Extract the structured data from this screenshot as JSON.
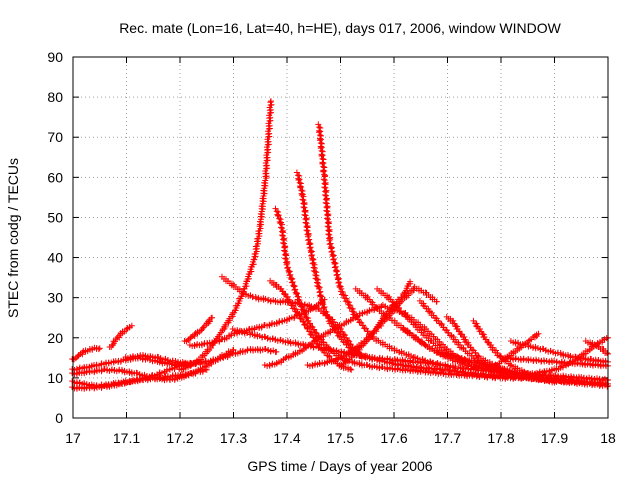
{
  "chart_data": {
    "type": "scatter",
    "title": "Rec. mate (Lon=16, Lat=40, h=HE), days 017, 2006, window WINDOW",
    "xlabel": "GPS time / Days of year 2006",
    "ylabel": "STEC from codg / TECUs",
    "xlim": [
      17,
      18
    ],
    "ylim": [
      0,
      90
    ],
    "xticks": [
      17,
      17.1,
      17.2,
      17.3,
      17.4,
      17.5,
      17.6,
      17.7,
      17.8,
      17.9,
      18
    ],
    "xtick_labels": [
      "17",
      "17.1",
      "17.2",
      "17.3",
      "17.4",
      "17.5",
      "17.6",
      "17.7",
      "17.8",
      "17.9",
      "18"
    ],
    "yticks": [
      0,
      10,
      20,
      30,
      40,
      50,
      60,
      70,
      80,
      90
    ],
    "ytick_labels": [
      "0",
      "10",
      "20",
      "30",
      "40",
      "50",
      "60",
      "70",
      "80",
      "90"
    ],
    "grid": "dotted",
    "marker": "plus",
    "color": "#ff0000",
    "series": [
      {
        "x": [
          17.0,
          17.02,
          17.04,
          17.06,
          17.08,
          17.1,
          17.12,
          17.14,
          17.16,
          17.18,
          17.2,
          17.22,
          17.24
        ],
        "y": [
          12,
          12.5,
          13,
          13.6,
          14,
          14.5,
          15,
          14.6,
          14,
          13.5,
          13,
          13.5,
          14
        ]
      },
      {
        "x": [
          17.0,
          17.03,
          17.06,
          17.09,
          17.12,
          17.15,
          17.18,
          17.2,
          17.22,
          17.25,
          17.28,
          17.3
        ],
        "y": [
          11,
          11.5,
          12,
          11.8,
          11,
          10,
          9.5,
          10,
          11,
          13,
          15.5,
          17
        ]
      },
      {
        "x": [
          17.0,
          17.02,
          17.04,
          17.06,
          17.08,
          17.1,
          17.13,
          17.16,
          17.19,
          17.22,
          17.25
        ],
        "y": [
          9,
          8.5,
          8,
          8.2,
          8.6,
          9,
          9.5,
          10,
          10.5,
          11,
          12
        ]
      },
      {
        "x": [
          17.0,
          17.01,
          17.02,
          17.03,
          17.04,
          17.05
        ],
        "y": [
          14.5,
          15.5,
          16.5,
          17,
          17.3,
          17.4
        ]
      },
      {
        "x": [
          17.0,
          17.03,
          17.06,
          17.09,
          17.12,
          17.15,
          17.18,
          17.21
        ],
        "y": [
          7.5,
          7.5,
          7.8,
          8.5,
          9.5,
          10.5,
          12,
          13.5
        ]
      },
      {
        "x": [
          17.07,
          17.08,
          17.09,
          17.1,
          17.11
        ],
        "y": [
          17.5,
          19.5,
          21,
          22.2,
          23
        ]
      },
      {
        "x": [
          17.1,
          17.13,
          17.16,
          17.19,
          17.22,
          17.25,
          17.28,
          17.3,
          17.33,
          17.36,
          17.38
        ],
        "y": [
          15,
          15.5,
          15,
          14,
          13.5,
          14,
          15,
          16,
          17,
          17,
          16.5
        ]
      },
      {
        "x": [
          17.2,
          17.22,
          17.24,
          17.26,
          17.28,
          17.3,
          17.32,
          17.34,
          17.35,
          17.36,
          17.37
        ],
        "y": [
          12,
          13,
          15,
          18,
          22,
          26,
          32,
          40,
          48,
          60,
          79
        ]
      },
      {
        "x": [
          17.22,
          17.25,
          17.28,
          17.3,
          17.33,
          17.36,
          17.39,
          17.42,
          17.45,
          17.47
        ],
        "y": [
          18,
          18.5,
          19.5,
          21,
          22,
          23,
          24,
          25.5,
          27.5,
          29.5
        ]
      },
      {
        "x": [
          17.21,
          17.22,
          17.23,
          17.24,
          17.25,
          17.26
        ],
        "y": [
          19,
          20,
          21,
          22,
          23.5,
          25
        ]
      },
      {
        "x": [
          17.38,
          17.39,
          17.4,
          17.42,
          17.44,
          17.46,
          17.48,
          17.5,
          17.52,
          17.55,
          17.58,
          17.62,
          17.66,
          17.7,
          17.75,
          17.8,
          17.85,
          17.9,
          17.95,
          18.0
        ],
        "y": [
          52,
          48,
          38,
          30,
          24,
          20,
          17,
          15,
          14,
          13,
          12.5,
          12,
          11.5,
          11,
          10.5,
          10,
          10,
          9.5,
          9,
          8.5
        ]
      },
      {
        "x": [
          17.42,
          17.43,
          17.44,
          17.45,
          17.46,
          17.47,
          17.48,
          17.5,
          17.52,
          17.55,
          17.6,
          17.65,
          17.7,
          17.75,
          17.8,
          17.85,
          17.9,
          17.95
        ],
        "y": [
          61,
          55,
          45,
          38,
          32,
          27,
          24,
          20,
          17,
          15,
          13.5,
          12.5,
          12,
          11,
          10.5,
          10,
          9.5,
          9
        ]
      },
      {
        "x": [
          17.46,
          17.47,
          17.48,
          17.5,
          17.53,
          17.56,
          17.6,
          17.64,
          17.68,
          17.72,
          17.76,
          17.8,
          17.85,
          17.9,
          17.95,
          18.0
        ],
        "y": [
          73,
          60,
          44,
          32,
          25,
          20,
          17,
          15,
          13.5,
          12.5,
          12,
          11.5,
          11,
          10.5,
          10,
          9.5
        ]
      },
      {
        "x": [
          17.28,
          17.3,
          17.32,
          17.34,
          17.36,
          17.38,
          17.4,
          17.42,
          17.44,
          17.46,
          17.48,
          17.5,
          17.52,
          17.54
        ],
        "y": [
          35,
          33,
          31,
          30,
          29.5,
          29,
          29,
          28.5,
          28,
          27,
          25,
          22,
          18,
          15
        ]
      },
      {
        "x": [
          17.37,
          17.38,
          17.39,
          17.4,
          17.42,
          17.44,
          17.46,
          17.48,
          17.5,
          17.52
        ],
        "y": [
          34,
          33,
          32,
          30,
          26,
          22,
          18,
          15,
          13,
          12
        ]
      },
      {
        "x": [
          17.3,
          17.33,
          17.36,
          17.4,
          17.44,
          17.48,
          17.52,
          17.56,
          17.6,
          17.64,
          17.68
        ],
        "y": [
          22,
          21,
          20,
          19,
          18,
          17,
          16,
          15,
          14.5,
          14,
          13.5
        ]
      },
      {
        "x": [
          17.44,
          17.46,
          17.48,
          17.5,
          17.52,
          17.54,
          17.56,
          17.58,
          17.6,
          17.62,
          17.64,
          17.66,
          17.68
        ],
        "y": [
          13,
          13.5,
          14,
          15,
          16.5,
          18.5,
          21,
          24,
          27,
          30,
          32.5,
          31,
          29
        ]
      },
      {
        "x": [
          17.36,
          17.38,
          17.4,
          17.43,
          17.46,
          17.5,
          17.54,
          17.58,
          17.62,
          17.66,
          17.7,
          17.73
        ],
        "y": [
          13,
          13.5,
          15,
          17,
          20,
          23,
          26,
          28,
          26,
          22,
          17,
          14
        ]
      },
      {
        "x": [
          17.5,
          17.52,
          17.54,
          17.56,
          17.58,
          17.6,
          17.62,
          17.63
        ],
        "y": [
          13,
          15,
          18,
          21,
          25,
          28,
          31,
          34
        ]
      },
      {
        "x": [
          17.53,
          17.55,
          17.57,
          17.6,
          17.63,
          17.66,
          17.7,
          17.74,
          17.78
        ],
        "y": [
          32,
          30,
          27,
          24,
          21,
          18,
          15,
          13,
          12
        ]
      },
      {
        "x": [
          17.57,
          17.59,
          17.61,
          17.64,
          17.67,
          17.7,
          17.74,
          17.78,
          17.82
        ],
        "y": [
          32,
          30,
          27,
          23,
          19,
          16,
          14,
          12,
          11
        ]
      },
      {
        "x": [
          17.62,
          17.64,
          17.66,
          17.68,
          17.7,
          17.72,
          17.75,
          17.78,
          17.81,
          17.84
        ],
        "y": [
          22,
          20,
          18,
          16.5,
          15.5,
          15,
          14,
          13,
          12,
          11
        ]
      },
      {
        "x": [
          17.65,
          17.67,
          17.69,
          17.71,
          17.73,
          17.76,
          17.79,
          17.82,
          17.85,
          17.88,
          17.92,
          17.96,
          18.0
        ],
        "y": [
          29,
          26,
          23,
          20,
          17,
          14,
          12,
          11,
          10,
          9.5,
          9,
          8.5,
          8
        ]
      },
      {
        "x": [
          17.7,
          17.71,
          17.72,
          17.73,
          17.74,
          17.76,
          17.79,
          17.82,
          17.86,
          17.9
        ],
        "y": [
          25,
          24,
          22,
          20,
          18,
          15,
          13,
          11,
          10,
          9
        ]
      },
      {
        "x": [
          17.75,
          17.76,
          17.77,
          17.78,
          17.8,
          17.82,
          17.85,
          17.88,
          17.92
        ],
        "y": [
          24,
          22,
          20,
          18,
          15,
          13,
          11,
          10,
          9
        ]
      },
      {
        "x": [
          17.78,
          17.8,
          17.82,
          17.84,
          17.86,
          17.87
        ],
        "y": [
          12,
          14,
          16,
          18,
          20,
          21
        ]
      },
      {
        "x": [
          17.82,
          17.85,
          17.88,
          17.91,
          17.94,
          17.97,
          18.0
        ],
        "y": [
          19,
          18,
          17,
          16,
          15,
          14.5,
          14
        ]
      },
      {
        "x": [
          17.86,
          17.88,
          17.9,
          17.92,
          17.94,
          17.96,
          17.98,
          18.0
        ],
        "y": [
          11,
          11.5,
          12,
          13,
          14.5,
          16.5,
          18.5,
          20
        ]
      },
      {
        "x": [
          17.96,
          17.97,
          17.98,
          17.99,
          18.0
        ],
        "y": [
          19,
          18.5,
          18,
          17,
          16
        ]
      },
      {
        "x": [
          17.8,
          17.85,
          17.9,
          17.95,
          18.0
        ],
        "y": [
          15,
          14.5,
          14,
          13.5,
          13
        ]
      }
    ]
  }
}
